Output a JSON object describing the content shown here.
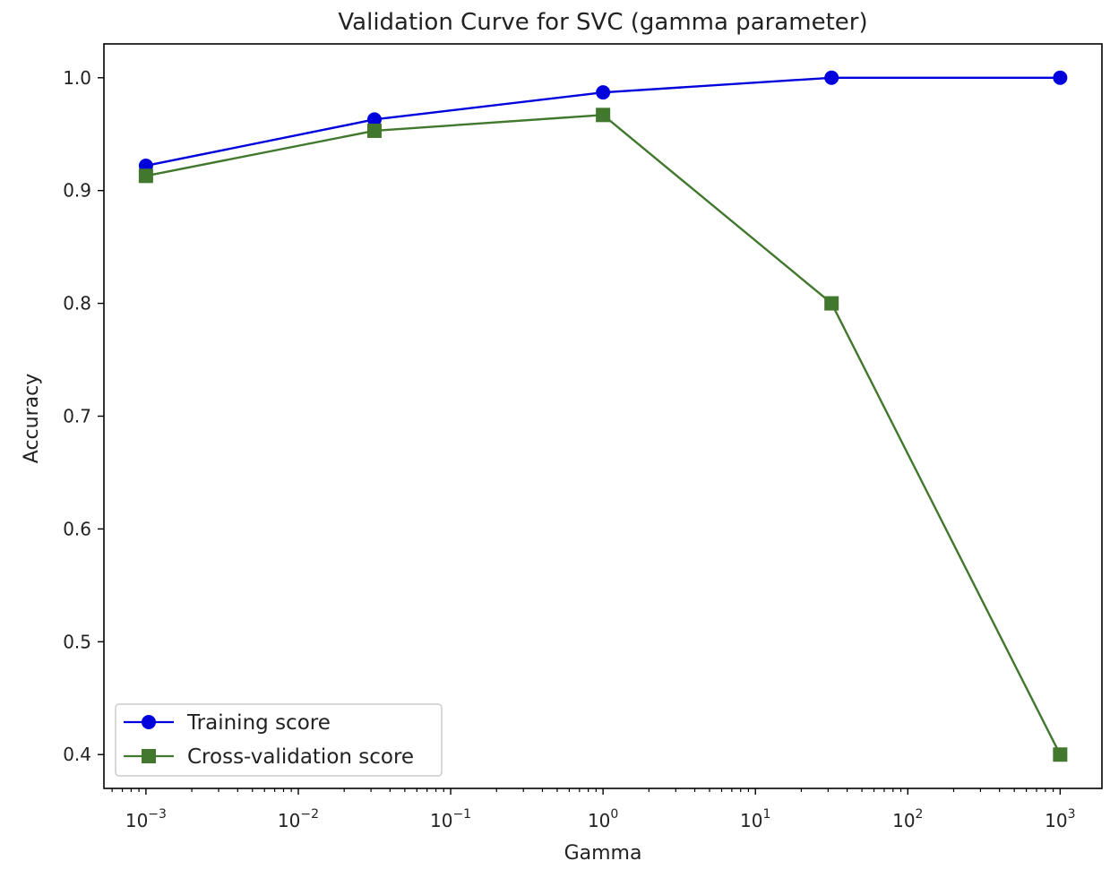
{
  "chart_data": {
    "type": "line",
    "title": "Validation Curve for SVC (gamma parameter)",
    "xlabel": "Gamma",
    "ylabel": "Accuracy",
    "xscale": "log",
    "x": [
      0.001,
      0.0316,
      1,
      31.6,
      1000
    ],
    "xlim": [
      0.00053,
      1880
    ],
    "ylim": [
      0.37,
      1.03
    ],
    "xticks": [
      {
        "value": 0.001,
        "base": "10",
        "exp": "−3"
      },
      {
        "value": 0.01,
        "base": "10",
        "exp": "−2"
      },
      {
        "value": 0.1,
        "base": "10",
        "exp": "−1"
      },
      {
        "value": 1,
        "base": "10",
        "exp": "0"
      },
      {
        "value": 10,
        "base": "10",
        "exp": "1"
      },
      {
        "value": 100,
        "base": "10",
        "exp": "2"
      },
      {
        "value": 1000,
        "base": "10",
        "exp": "3"
      }
    ],
    "yticks": [
      {
        "value": 0.4,
        "label": "0.4"
      },
      {
        "value": 0.5,
        "label": "0.5"
      },
      {
        "value": 0.6,
        "label": "0.6"
      },
      {
        "value": 0.7,
        "label": "0.7"
      },
      {
        "value": 0.8,
        "label": "0.8"
      },
      {
        "value": 0.9,
        "label": "0.9"
      },
      {
        "value": 1.0,
        "label": "1.0"
      }
    ],
    "series": [
      {
        "name": "Training score",
        "values": [
          0.922,
          0.963,
          0.987,
          1.0,
          1.0
        ],
        "color": "#0000dd",
        "marker": "circle"
      },
      {
        "name": "Cross-validation score",
        "values": [
          0.913,
          0.953,
          0.967,
          0.8,
          0.4
        ],
        "color": "#41782d",
        "marker": "square"
      }
    ],
    "legend": {
      "placement": "lower-left"
    },
    "grid": false
  }
}
